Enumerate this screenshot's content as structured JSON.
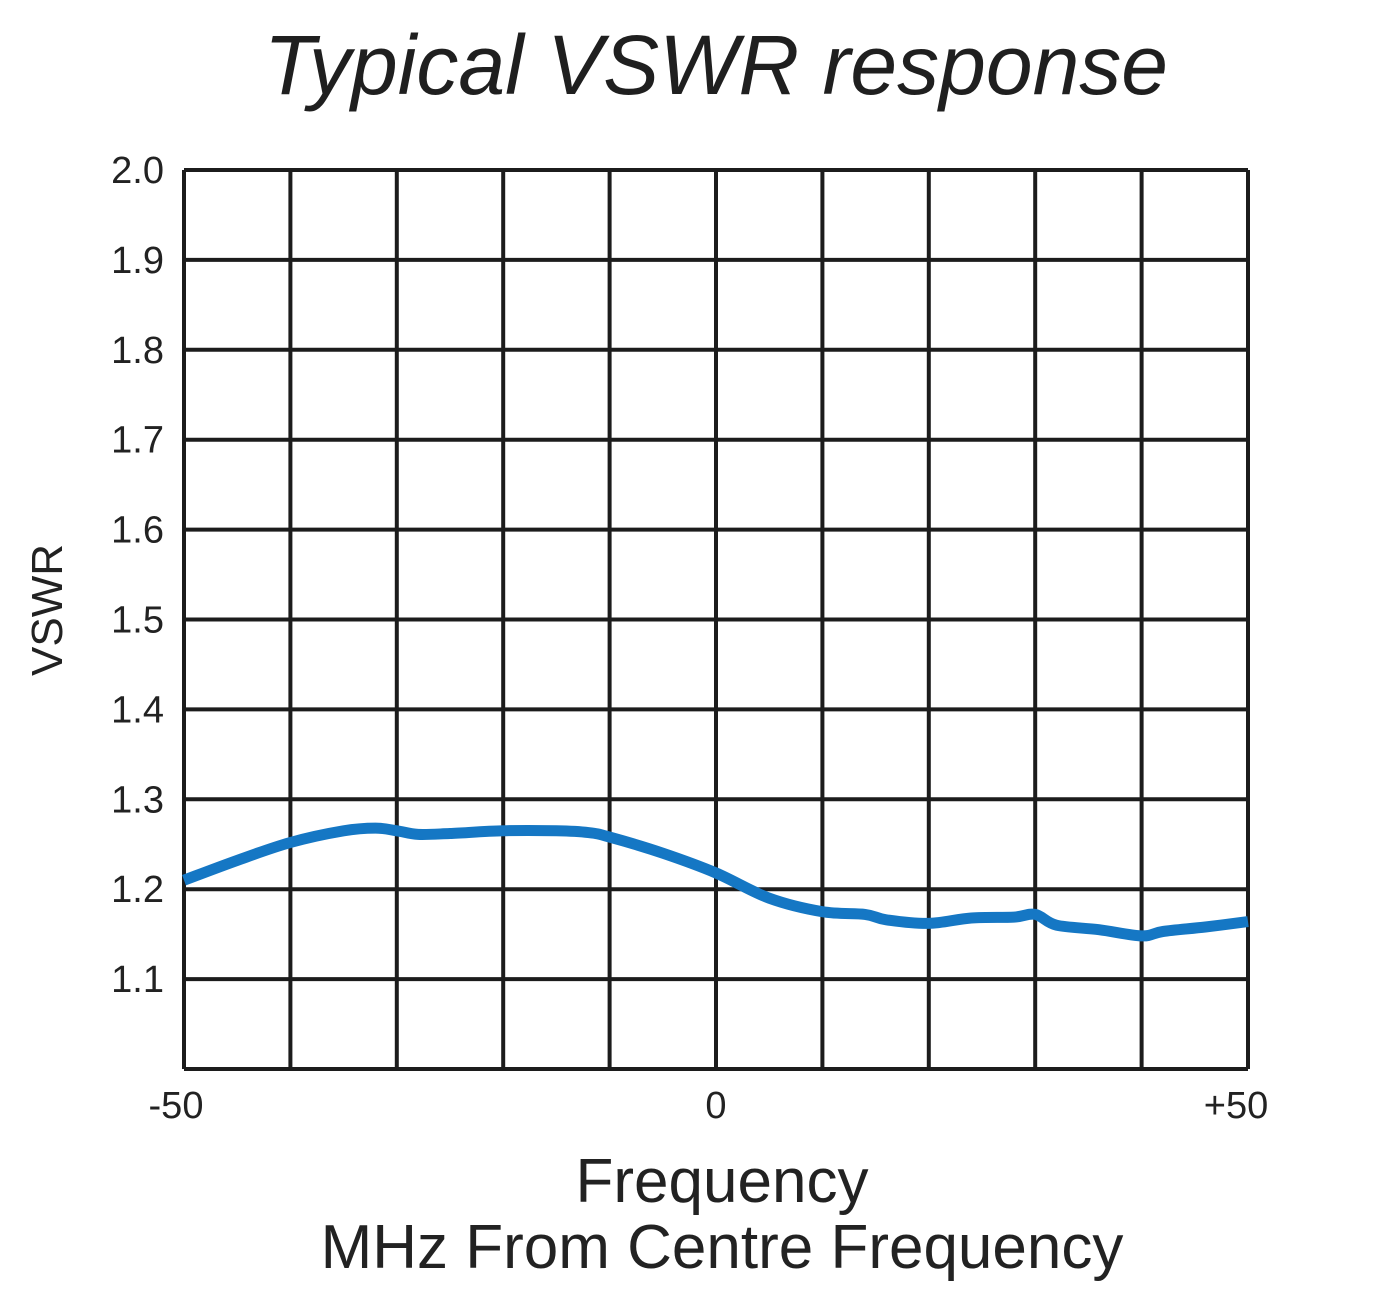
{
  "chart_data": {
    "type": "line",
    "title": "Typical VSWR response",
    "xlabel_line1": "Frequency",
    "xlabel_line2": "MHz From Centre Frequency",
    "ylabel": "VSWR",
    "xlim": [
      -50,
      50
    ],
    "ylim": [
      1.0,
      2.0
    ],
    "x_grid_step": 10,
    "y_grid_step": 0.1,
    "grid": true,
    "x_tick_labels": [
      {
        "x": -50,
        "label": "-50"
      },
      {
        "x": 0,
        "label": "0"
      },
      {
        "x": 50,
        "label": "+50"
      }
    ],
    "y_tick_labels": [
      {
        "y": 2.0,
        "label": "2.0"
      },
      {
        "y": 1.9,
        "label": "1.9"
      },
      {
        "y": 1.8,
        "label": "1.8"
      },
      {
        "y": 1.7,
        "label": "1.7"
      },
      {
        "y": 1.6,
        "label": "1.6"
      },
      {
        "y": 1.5,
        "label": "1.5"
      },
      {
        "y": 1.4,
        "label": "1.4"
      },
      {
        "y": 1.3,
        "label": "1.3"
      },
      {
        "y": 1.2,
        "label": "1.2"
      },
      {
        "y": 1.1,
        "label": "1.1"
      }
    ],
    "series": [
      {
        "color": "#1577c4",
        "points": [
          [
            -50,
            1.21
          ],
          [
            -45,
            1.232
          ],
          [
            -40,
            1.252
          ],
          [
            -35,
            1.265
          ],
          [
            -32,
            1.268
          ],
          [
            -30,
            1.265
          ],
          [
            -28,
            1.261
          ],
          [
            -25,
            1.262
          ],
          [
            -20,
            1.265
          ],
          [
            -15,
            1.265
          ],
          [
            -12,
            1.263
          ],
          [
            -10,
            1.258
          ],
          [
            -5,
            1.24
          ],
          [
            0,
            1.218
          ],
          [
            5,
            1.19
          ],
          [
            10,
            1.175
          ],
          [
            14,
            1.172
          ],
          [
            16,
            1.166
          ],
          [
            20,
            1.162
          ],
          [
            24,
            1.168
          ],
          [
            28,
            1.169
          ],
          [
            30,
            1.172
          ],
          [
            32,
            1.16
          ],
          [
            36,
            1.155
          ],
          [
            40,
            1.148
          ],
          [
            42,
            1.153
          ],
          [
            46,
            1.158
          ],
          [
            50,
            1.164
          ]
        ]
      }
    ]
  }
}
